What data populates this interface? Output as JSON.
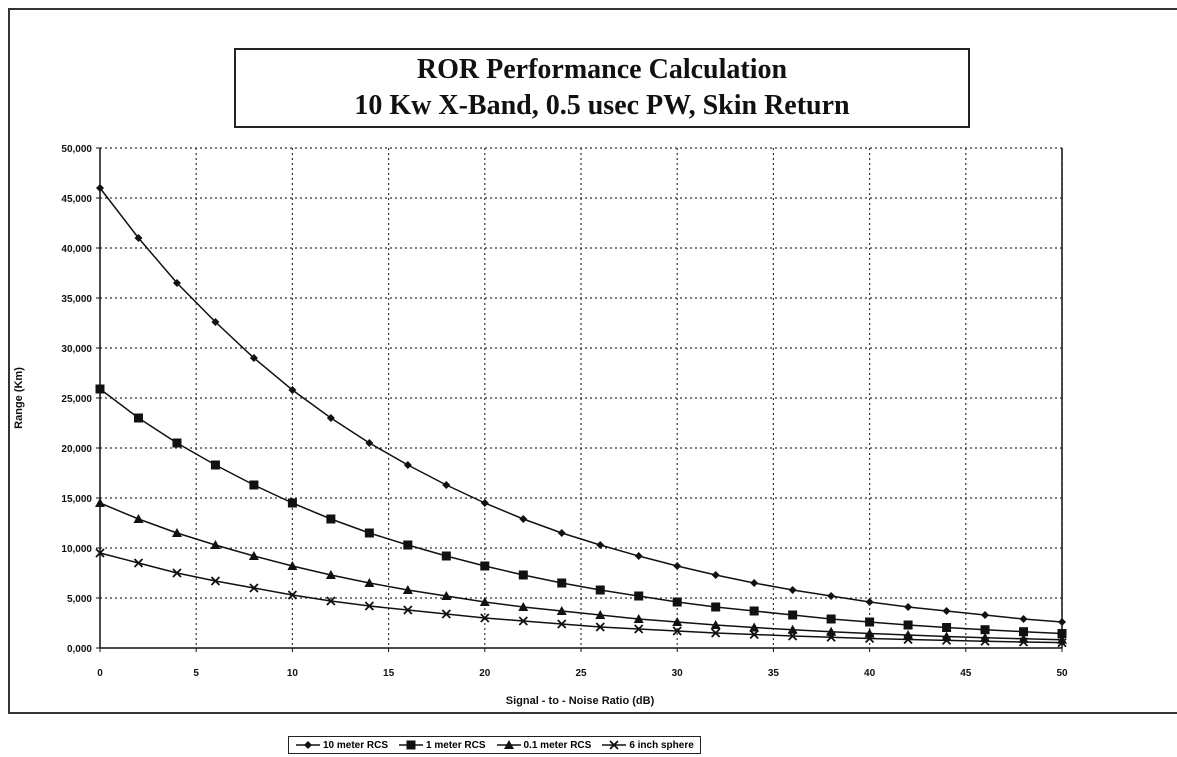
{
  "title_line1": "ROR Performance Calculation",
  "title_line2": "10 Kw X-Band, 0.5 usec PW, Skin Return",
  "chart_data": {
    "type": "line",
    "title": "ROR Performance Calculation 10 Kw X-Band, 0.5 usec PW, Skin Return",
    "xlabel": "Signal - to - Noise Ratio (dB)",
    "ylabel": "Range (Km)",
    "xlim": [
      0,
      50
    ],
    "ylim": [
      0,
      50000
    ],
    "x_ticks": [
      "0",
      "5",
      "10",
      "15",
      "20",
      "25",
      "30",
      "35",
      "40",
      "45",
      "50"
    ],
    "y_ticks": [
      "0,000",
      "5,000",
      "10,000",
      "15,000",
      "20,000",
      "25,000",
      "30,000",
      "35,000",
      "40,000",
      "45,000",
      "50,000"
    ],
    "grid": true,
    "legend_position": "bottom",
    "x": [
      0,
      2,
      4,
      6,
      8,
      10,
      12,
      14,
      16,
      18,
      20,
      22,
      24,
      26,
      28,
      30,
      32,
      34,
      36,
      38,
      40,
      42,
      44,
      46,
      48,
      50
    ],
    "series": [
      {
        "name": "10 meter RCS",
        "marker": "diamond",
        "values": [
          46000,
          41000,
          36500,
          32600,
          29000,
          25800,
          23000,
          20500,
          18300,
          16300,
          14500,
          12900,
          11500,
          10300,
          9200,
          8200,
          7300,
          6500,
          5800,
          5200,
          4600,
          4100,
          3700,
          3300,
          2900,
          2600
        ]
      },
      {
        "name": "1 meter RCS",
        "marker": "square",
        "values": [
          25900,
          23000,
          20500,
          18300,
          16300,
          14500,
          12900,
          11500,
          10300,
          9200,
          8200,
          7300,
          6500,
          5800,
          5200,
          4600,
          4100,
          3700,
          3300,
          2900,
          2600,
          2300,
          2050,
          1830,
          1630,
          1450
        ]
      },
      {
        "name": "0.1 meter RCS",
        "marker": "triangle",
        "values": [
          14500,
          12900,
          11500,
          10300,
          9200,
          8200,
          7300,
          6500,
          5800,
          5200,
          4600,
          4100,
          3700,
          3300,
          2900,
          2600,
          2300,
          2050,
          1830,
          1630,
          1450,
          1300,
          1150,
          1030,
          920,
          820
        ]
      },
      {
        "name": "6 inch sphere",
        "marker": "x",
        "values": [
          9500,
          8500,
          7500,
          6700,
          6000,
          5300,
          4700,
          4200,
          3800,
          3400,
          3000,
          2700,
          2400,
          2100,
          1900,
          1700,
          1500,
          1350,
          1200,
          1070,
          950,
          850,
          760,
          680,
          600,
          540
        ]
      }
    ]
  }
}
